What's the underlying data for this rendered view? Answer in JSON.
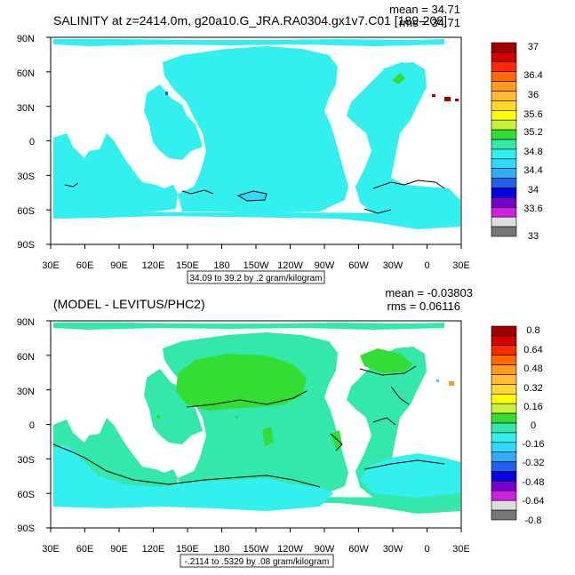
{
  "chart_data": [
    {
      "type": "heatmap",
      "title": "SALINITY at z=2414.0m, g20a10.G_JRA.RA0304.gx1v7.C01 [189-208]",
      "stats": {
        "mean": "mean = 34.71",
        "rms": "rms = 34.71"
      },
      "contour_info": "34.09 to 39.2 by .2 gram/kilogram",
      "x_ticks": [
        "30E",
        "60E",
        "90E",
        "120E",
        "150E",
        "180",
        "150W",
        "120W",
        "90W",
        "60W",
        "30W",
        "0",
        "30E"
      ],
      "y_ticks": [
        "90N",
        "60N",
        "30N",
        "0",
        "30S",
        "60S",
        "90S"
      ],
      "colorbar": {
        "labels": [
          "37",
          "36.4",
          "36",
          "35.6",
          "35.2",
          "34.8",
          "34.4",
          "34",
          "33.6",
          "33"
        ],
        "colors": [
          "#a10000",
          "#d40000",
          "#ff2a00",
          "#ff6a00",
          "#ff9a20",
          "#ffbb33",
          "#ffd633",
          "#ffff00",
          "#c8f03c",
          "#33dd33",
          "#33e8aa",
          "#33f0ee",
          "#33d8f8",
          "#33aaf4",
          "#2060e8",
          "#0000e0",
          "#7700cc",
          "#cc22dd",
          "#dddddd",
          "#777777"
        ],
        "selected_ocean_color": "#33f0ee"
      }
    },
    {
      "type": "heatmap",
      "title": "(MODEL - LEVITUS/PHC2)",
      "stats": {
        "mean": "mean = -0.03803",
        "rms": "rms = 0.06116"
      },
      "contour_info": "-.2114 to .5329 by .08 gram/kilogram",
      "x_ticks": [
        "30E",
        "60E",
        "90E",
        "120E",
        "150E",
        "180",
        "150W",
        "120W",
        "90W",
        "60W",
        "30W",
        "0",
        "30E"
      ],
      "y_ticks": [
        "90N",
        "60N",
        "30N",
        "0",
        "30S",
        "60S",
        "90S"
      ],
      "colorbar": {
        "labels": [
          "0.8",
          "0.64",
          "0.48",
          "0.32",
          "0.16",
          "0",
          "-0.16",
          "-0.32",
          "-0.48",
          "-0.64",
          "-0.8"
        ],
        "colors": [
          "#a10000",
          "#d40000",
          "#ff2a00",
          "#ff6a00",
          "#ff9a20",
          "#ffbb33",
          "#ffd633",
          "#ffff00",
          "#c8f03c",
          "#33dd33",
          "#33e8aa",
          "#33f0ee",
          "#33d8f8",
          "#33aaf4",
          "#2060e8",
          "#0000e0",
          "#7700cc",
          "#cc22dd",
          "#dddddd",
          "#777777"
        ]
      }
    }
  ]
}
